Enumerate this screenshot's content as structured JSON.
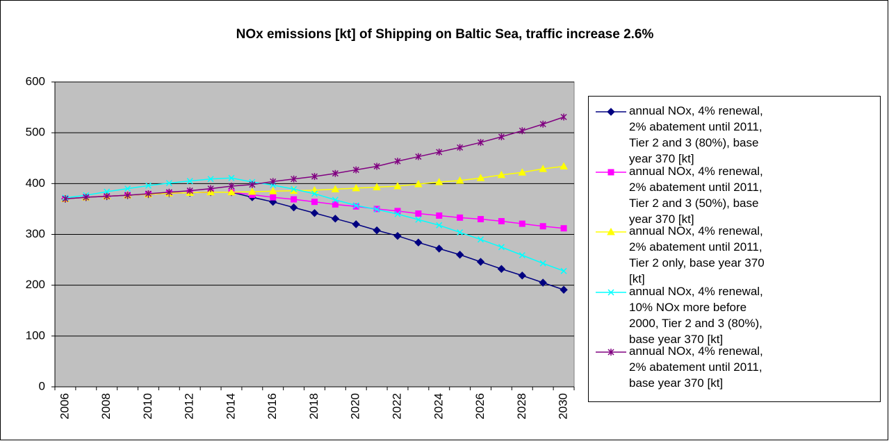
{
  "chart_data": {
    "type": "line",
    "title": "NOx emissions [kt] of Shipping on Baltic Sea, traffic increase 2.6%",
    "categories": [
      2006,
      null,
      2008,
      null,
      2010,
      null,
      2012,
      null,
      2014,
      null,
      2016,
      null,
      2018,
      null,
      2020,
      null,
      2022,
      null,
      2024,
      null,
      2026,
      null,
      2028,
      null,
      2030
    ],
    "ylim": [
      0,
      600
    ],
    "yticks": [
      0,
      100,
      200,
      300,
      400,
      500,
      600
    ],
    "grid": true,
    "series": [
      {
        "name": "annual NOx, 4% renewal, 2% abatement until 2011, Tier 2 and 3 (80%), base year 370 [kt]",
        "color": "#000080",
        "marker": "diamond",
        "values": [
          370,
          373,
          375,
          377,
          379,
          381,
          382,
          383,
          383,
          373,
          364,
          353,
          342,
          331,
          320,
          308,
          297,
          284,
          272,
          260,
          246,
          232,
          219,
          205,
          191
        ]
      },
      {
        "name": "annual NOx, 4% renewal, 2% abatement until 2011, Tier 2 and 3 (50%), base year 370 [kt]",
        "color": "#ff00ff",
        "marker": "square",
        "values": [
          370,
          373,
          375,
          377,
          379,
          381,
          382,
          383,
          383,
          378,
          373,
          369,
          364,
          359,
          355,
          350,
          346,
          341,
          337,
          333,
          330,
          326,
          321,
          316,
          312
        ]
      },
      {
        "name": "annual NOx, 4% renewal, 2% abatement until 2011, Tier 2 only, base year 370 [kt]",
        "color": "#ffff00",
        "marker": "triangle",
        "values": [
          370,
          373,
          375,
          377,
          379,
          381,
          382,
          383,
          383,
          384,
          385,
          386,
          387,
          389,
          391,
          393,
          395,
          399,
          403,
          406,
          411,
          417,
          422,
          429,
          434
        ]
      },
      {
        "name": "annual NOx, 4% renewal, 10% NOx more before 2000, Tier 2 and 3 (80%), base year 370 [kt]",
        "color": "#00ffff",
        "marker": "x",
        "values": [
          372,
          377,
          384,
          390,
          396,
          401,
          405,
          409,
          411,
          403,
          397,
          389,
          380,
          368,
          357,
          349,
          340,
          329,
          318,
          304,
          290,
          275,
          259,
          243,
          228
        ]
      },
      {
        "name": "annual NOx, 4% renewal, 2% abatement until 2011, base year 370 [kt]",
        "color": "#800080",
        "marker": "star",
        "values": [
          370,
          373,
          375,
          377,
          380,
          383,
          386,
          390,
          395,
          398,
          404,
          409,
          414,
          420,
          427,
          434,
          444,
          453,
          462,
          471,
          481,
          492,
          504,
          517,
          531
        ]
      }
    ]
  }
}
